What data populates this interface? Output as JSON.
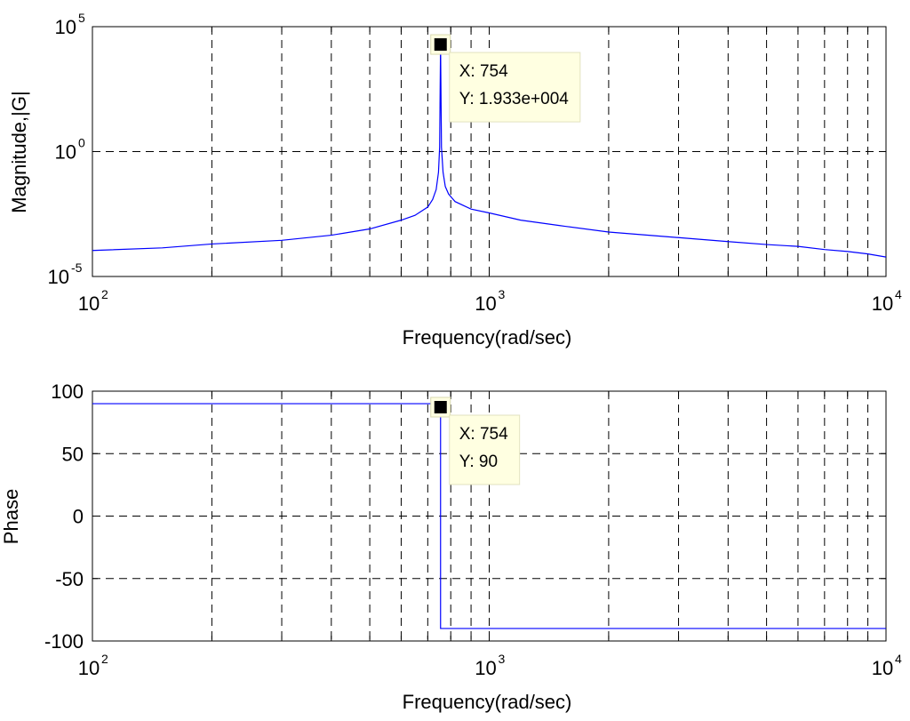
{
  "chart_data": [
    {
      "type": "line",
      "xscale": "log",
      "yscale": "log",
      "xlim": [
        100,
        10000
      ],
      "ylim": [
        1e-05,
        100000
      ],
      "grid": true,
      "xlabel": "Frequency(rad/sec)",
      "ylabel": "Magnitude,|G|",
      "x_ticks": [
        {
          "base": "10",
          "exp": "2",
          "value": 100
        },
        {
          "base": "10",
          "exp": "3",
          "value": 1000
        },
        {
          "base": "10",
          "exp": "4",
          "value": 10000
        }
      ],
      "y_ticks": [
        {
          "base": "10",
          "exp": "-5",
          "value": 1e-05
        },
        {
          "base": "10",
          "exp": "0",
          "value": 1
        },
        {
          "base": "10",
          "exp": "5",
          "value": 100000
        }
      ],
      "color": "#0000ff",
      "x": [
        100,
        150,
        200,
        300,
        400,
        500,
        600,
        650,
        700,
        720,
        735,
        745,
        750,
        754,
        758,
        765,
        775,
        790,
        820,
        900,
        1000,
        1200,
        1500,
        2000,
        3000,
        4000,
        5000,
        6000,
        7000,
        8000,
        9000,
        10000
      ],
      "y": [
        0.00011,
        0.00014,
        0.0002,
        0.00028,
        0.00045,
        0.0008,
        0.0018,
        0.0028,
        0.006,
        0.012,
        0.03,
        0.15,
        1.5,
        19330,
        1.5,
        0.15,
        0.04,
        0.02,
        0.01,
        0.005,
        0.0035,
        0.0018,
        0.0011,
        0.0006,
        0.00036,
        0.00025,
        0.00019,
        0.00016,
        0.00012,
        0.0001,
        8e-05,
        6e-05
      ],
      "datatip": {
        "x": 754,
        "y": 19330,
        "line1": "X: 754",
        "line2": "Y: 1.933e+004"
      }
    },
    {
      "type": "line",
      "xscale": "log",
      "yscale": "linear",
      "xlim": [
        100,
        10000
      ],
      "ylim": [
        -100,
        100
      ],
      "grid": true,
      "xlabel": "Frequency(rad/sec)",
      "ylabel": "Phase",
      "x_ticks": [
        {
          "base": "10",
          "exp": "2",
          "value": 100
        },
        {
          "base": "10",
          "exp": "3",
          "value": 1000
        },
        {
          "base": "10",
          "exp": "4",
          "value": 10000
        }
      ],
      "y_ticks": [
        "100",
        "50",
        "0",
        "-50",
        "-100"
      ],
      "color": "#0000ff",
      "x": [
        100,
        754,
        754.01,
        758,
        10000
      ],
      "y": [
        90,
        90,
        -90,
        -90,
        -90
      ],
      "datatip": {
        "x": 754,
        "y": 90,
        "line1": "X: 754",
        "line2": "Y: 90"
      }
    }
  ]
}
